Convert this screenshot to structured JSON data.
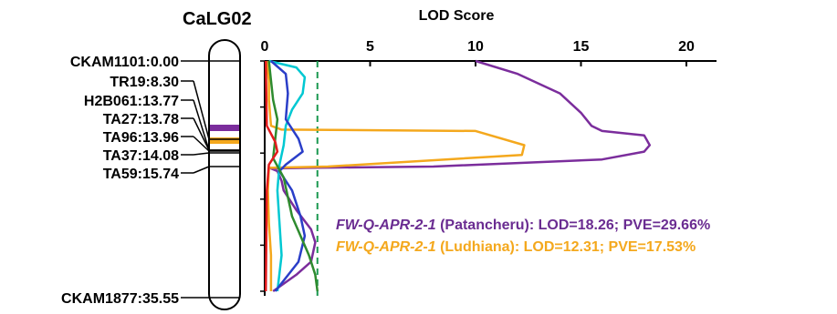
{
  "chart_data": {
    "type": "line",
    "title": "CaLG02",
    "xlabel": "LOD Score",
    "xlim": [
      0,
      20
    ],
    "x_ticks": [
      "0",
      "5",
      "10",
      "15",
      "20"
    ],
    "orientation": "horizontal-lod-vs-position",
    "position_range_cM": [
      0,
      35.55
    ],
    "threshold": {
      "lod": 2.5,
      "style": "dashed",
      "color": "#1a9850"
    },
    "markers": [
      {
        "label": "CKAM1101:0.00",
        "position": 0.0
      },
      {
        "label": "TR19:8.30",
        "position": 8.3
      },
      {
        "label": "H2B061:13.77",
        "position": 13.77
      },
      {
        "label": "TA27:13.78",
        "position": 13.78
      },
      {
        "label": "TA96:13.96",
        "position": 13.96
      },
      {
        "label": "TA37:14.08",
        "position": 14.08
      },
      {
        "label": "TA59:15.74",
        "position": 15.74
      },
      {
        "label": "CKAM1877:35.55",
        "position": 35.55
      }
    ],
    "qtl_bars": [
      {
        "color": "#7b2d9c",
        "position": 13.85
      },
      {
        "color": "#f4a81d",
        "position": 14.02
      }
    ],
    "series": [
      {
        "color": "#7b2d9c",
        "points": [
          [
            10,
            0
          ],
          [
            12,
            2
          ],
          [
            14,
            5
          ],
          [
            15,
            8
          ],
          [
            15.5,
            10
          ],
          [
            16,
            10.8
          ],
          [
            18,
            11.5
          ],
          [
            18.26,
            13
          ],
          [
            18,
            14
          ],
          [
            16,
            15.2
          ],
          [
            8,
            16.3
          ],
          [
            2,
            16.5
          ],
          [
            0.3,
            16.6
          ],
          [
            0.6,
            17
          ],
          [
            0.8,
            18.5
          ],
          [
            0.9,
            20
          ],
          [
            1.5,
            23
          ],
          [
            2.2,
            26
          ],
          [
            2.4,
            28
          ],
          [
            2.2,
            31
          ],
          [
            1.5,
            33
          ],
          [
            0.4,
            35.55
          ]
        ]
      },
      {
        "color": "#f4a81d",
        "points": [
          [
            0.1,
            0
          ],
          [
            0.2,
            3
          ],
          [
            0.2,
            6
          ],
          [
            0.3,
            10
          ],
          [
            0.8,
            10.6
          ],
          [
            10,
            10.8
          ],
          [
            12.31,
            13
          ],
          [
            12.2,
            14.5
          ],
          [
            3,
            16.3
          ],
          [
            0.2,
            16.5
          ],
          [
            0.15,
            20
          ],
          [
            0.2,
            25
          ],
          [
            0.3,
            30
          ],
          [
            0.3,
            35.55
          ]
        ]
      },
      {
        "color": "#00c8d2",
        "points": [
          [
            0.2,
            0
          ],
          [
            1.5,
            1
          ],
          [
            1.9,
            2.5
          ],
          [
            1.8,
            5
          ],
          [
            1.3,
            7.5
          ],
          [
            1.0,
            10
          ],
          [
            0.9,
            13
          ],
          [
            0.7,
            16
          ],
          [
            0.6,
            20
          ],
          [
            0.7,
            25
          ],
          [
            0.8,
            30
          ],
          [
            0.6,
            35.55
          ]
        ]
      },
      {
        "color": "#2a3ec8",
        "points": [
          [
            0.3,
            0
          ],
          [
            1.0,
            2
          ],
          [
            1.1,
            5
          ],
          [
            1.0,
            9
          ],
          [
            1.6,
            12
          ],
          [
            1.8,
            14
          ],
          [
            1.0,
            16
          ],
          [
            0.7,
            17
          ],
          [
            1.3,
            20
          ],
          [
            1.7,
            24
          ],
          [
            1.9,
            27
          ],
          [
            1.6,
            31
          ],
          [
            0.5,
            35.55
          ]
        ]
      },
      {
        "color": "#2e8b2e",
        "points": [
          [
            0.2,
            0
          ],
          [
            0.3,
            3
          ],
          [
            0.4,
            6
          ],
          [
            0.6,
            9
          ],
          [
            0.5,
            12
          ],
          [
            0.4,
            15
          ],
          [
            0.9,
            18
          ],
          [
            1.1,
            21
          ],
          [
            1.3,
            24
          ],
          [
            1.7,
            27
          ],
          [
            2.1,
            30
          ],
          [
            2.4,
            33
          ],
          [
            2.5,
            35.55
          ]
        ]
      },
      {
        "color": "#e31a1c",
        "points": [
          [
            0.05,
            0
          ],
          [
            0.1,
            10
          ],
          [
            0.5,
            12.5
          ],
          [
            0.6,
            14
          ],
          [
            0.2,
            16
          ],
          [
            0.1,
            20
          ],
          [
            0.05,
            35.55
          ]
        ]
      }
    ],
    "annotations": [
      {
        "qtl": "FW-Q-APR-2-1",
        "rest": " (Patancheru): LOD=18.26; PVE=29.66%",
        "color": "#6a2c91"
      },
      {
        "qtl": "FW-Q-APR-2-1",
        "rest": " (Ludhiana): LOD=12.31; PVE=17.53%",
        "color": "#f4a81d"
      }
    ]
  }
}
